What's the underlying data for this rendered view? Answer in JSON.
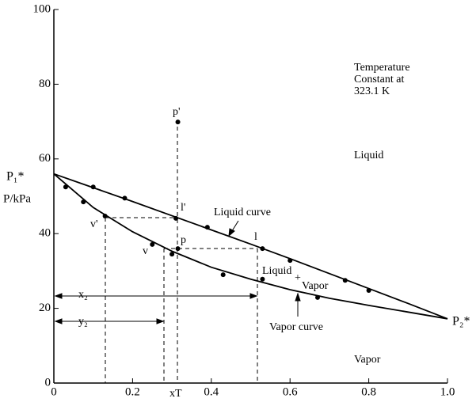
{
  "chart_data": {
    "type": "line",
    "y_label": "P/kPa",
    "xlim": [
      0,
      1
    ],
    "ylim": [
      0,
      100
    ],
    "xticks": [
      0,
      0.2,
      0.4,
      0.6,
      0.8,
      {
        "value": 1,
        "label": "1.0"
      }
    ],
    "yticks": [
      0,
      20,
      40,
      60,
      80,
      100
    ],
    "x": [
      0,
      0.1,
      0.2,
      0.3,
      0.4,
      0.5,
      0.6,
      0.7,
      0.8,
      0.9,
      1.0
    ],
    "series": [
      {
        "name": "Liquid curve",
        "color": "#000000",
        "values": [
          56,
          52.3,
          48.6,
          44.8,
          41.0,
          37.2,
          33.3,
          29.3,
          25.3,
          21.3,
          17.2
        ]
      },
      {
        "name": "Vapor curve",
        "color": "#000000",
        "values": [
          56,
          47.0,
          40.5,
          35.3,
          31.0,
          27.8,
          25.0,
          22.7,
          20.8,
          19.0,
          17.2
        ]
      }
    ],
    "points": {
      "x": [
        0.1,
        0.18,
        0.39,
        0.53,
        0.6,
        0.74,
        0.8,
        0.03,
        0.075,
        0.13,
        0.25,
        0.3,
        0.43,
        0.53,
        0.67,
        0.315,
        0.315,
        0.31
      ],
      "values": [
        52.5,
        49.5,
        41.7,
        36,
        32.8,
        27.5,
        24.8,
        52.5,
        48.5,
        44.7,
        37.1,
        34.5,
        29,
        27.8,
        22.9,
        69.9,
        36,
        44.1
      ]
    },
    "p1_label": "P₁*",
    "p2_label": "P₂*",
    "annotations": [
      "Temperature",
      "Constant at",
      "323.1 K",
      "Liquid",
      "Vapor",
      "p'",
      "l'",
      "v'",
      "p",
      "l",
      "v",
      "Liquid",
      "+",
      "Vapor",
      "x₂",
      "y₂",
      "xT"
    ]
  }
}
